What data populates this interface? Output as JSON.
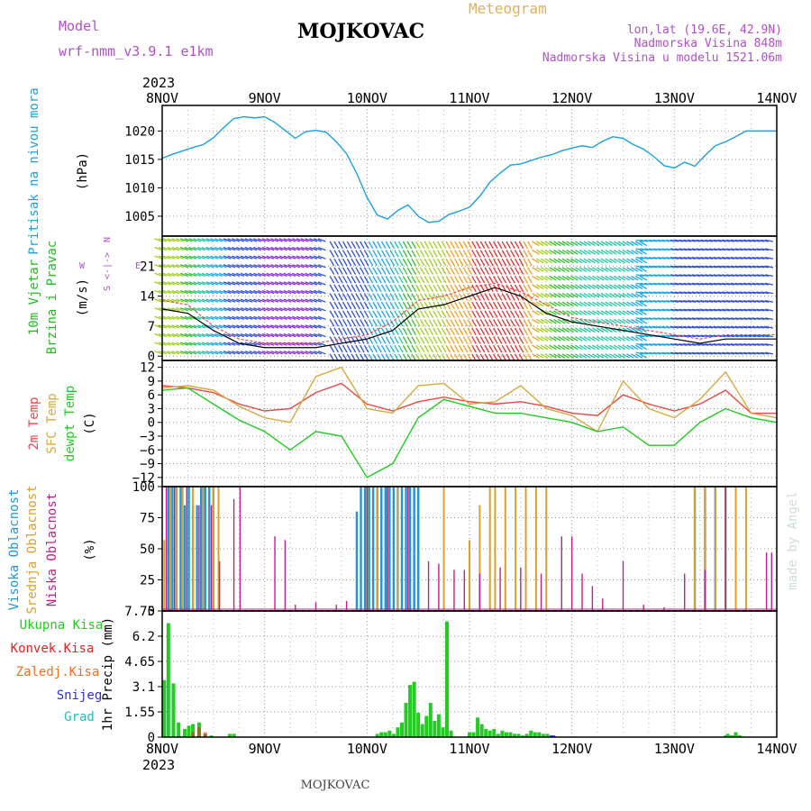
{
  "header": {
    "model_label": "Model",
    "model_name": "wrf-nmm_v3.9.1  e1km",
    "station": "MOJKOVAC",
    "product": "Meteogram",
    "coords": "lon,lat (19.6E, 42.9N)",
    "elevation": "Nadmorska Visina 848m",
    "model_elevation": "Nadmorska Visina u modelu 1521.06m"
  },
  "footer": {
    "station": "MOJKOVAC",
    "credit": "made by Angel"
  },
  "time_axis": {
    "year": "2023",
    "days": [
      "8NOV",
      "9NOV",
      "10NOV",
      "11NOV",
      "12NOV",
      "13NOV",
      "14NOV"
    ]
  },
  "colors": {
    "pressure": "#1ea0e0",
    "wind_label": "#22bb22",
    "temp2m": "#e84848",
    "sfc_temp": "#d8a840",
    "dewpoint": "#22cc22",
    "cloud_high": "#1e96dc",
    "cloud_mid": "#dca030",
    "cloud_low": "#c0208c",
    "precip_total": "#22cc22",
    "precip_conv": "#e82020",
    "precip_freezing": "#f07020",
    "precip_snow": "#3030d8",
    "precip_hail": "#20c0c0",
    "title": "#000000",
    "model": "#b050c8",
    "meteogram": "#e0b060"
  },
  "chart_data": [
    {
      "type": "line",
      "panel": "pressure",
      "ylabel_left": "Pritisak na nivou mora",
      "unit": "(hPa)",
      "yticks": [
        "1005",
        "1010",
        "1015",
        "1020"
      ],
      "ylim": [
        1001.5,
        1024.5
      ],
      "x_unit": "days since 8NOV 00:00",
      "series": [
        {
          "name": "Pritisak na nivou mora",
          "x": [
            0,
            0.1,
            0.2,
            0.3,
            0.4,
            0.5,
            0.6,
            0.7,
            0.8,
            0.9,
            1.0,
            1.1,
            1.2,
            1.3,
            1.4,
            1.5,
            1.6,
            1.7,
            1.8,
            1.9,
            2.0,
            2.1,
            2.2,
            2.3,
            2.4,
            2.5,
            2.6,
            2.7,
            2.8,
            2.9,
            3.0,
            3.1,
            3.2,
            3.3,
            3.4,
            3.5,
            3.6,
            3.7,
            3.8,
            3.9,
            4.0,
            4.1,
            4.2,
            4.3,
            4.4,
            4.5,
            4.6,
            4.7,
            4.8,
            4.9,
            5.0,
            5.1,
            5.2,
            5.3,
            5.4,
            5.5,
            5.6,
            5.7,
            5.8,
            5.9,
            6.0
          ],
          "values": [
            1015.2,
            1015.9,
            1016.5,
            1017.1,
            1017.6,
            1018.8,
            1020.6,
            1022.2,
            1022.5,
            1022.3,
            1022.5,
            1021.5,
            1020.1,
            1018.7,
            1019.9,
            1020.1,
            1019.8,
            1018.1,
            1016.0,
            1012.5,
            1008.3,
            1005.2,
            1004.5,
            1006.0,
            1007.0,
            1005.0,
            1003.9,
            1004.1,
            1005.3,
            1005.9,
            1006.6,
            1008.5,
            1011.0,
            1012.6,
            1014.0,
            1014.2,
            1014.8,
            1015.4,
            1015.8,
            1016.5,
            1017.0,
            1017.4,
            1017.1,
            1018.2,
            1019.0,
            1018.7,
            1017.6,
            1016.8,
            1015.5,
            1013.9,
            1013.5,
            1014.5,
            1013.8,
            1015.7,
            1017.4,
            1018.1,
            1019.0,
            1020.0,
            1020.0,
            1020.0,
            1020.0
          ],
          "values_trimmed_note": ""
        }
      ]
    },
    {
      "type": "line",
      "panel": "wind",
      "ylabel_left": [
        "10m Vjetar",
        "Brzina i Pravac"
      ],
      "unit": "(m/s)",
      "compass": [
        "N",
        "<-|->",
        "S",
        "E",
        "W"
      ],
      "yticks": [
        "0",
        "7",
        "14",
        "21"
      ],
      "ylim": [
        -1,
        28
      ],
      "series": [
        {
          "name": "speed",
          "x": [
            0,
            0.25,
            0.5,
            0.75,
            1.0,
            1.25,
            1.5,
            1.75,
            2.0,
            2.25,
            2.5,
            2.75,
            3.0,
            3.25,
            3.5,
            3.75,
            4.0,
            4.25,
            4.5,
            4.75,
            5.0,
            5.25,
            5.5,
            5.75,
            6.0
          ],
          "values": [
            11,
            10,
            6,
            3,
            2,
            2,
            2,
            3,
            4,
            6,
            11,
            12,
            14,
            16,
            14,
            10,
            8,
            7,
            6,
            5,
            4,
            3,
            4,
            4,
            4
          ]
        },
        {
          "name": "gust",
          "x": [
            0,
            0.25,
            0.5,
            0.75,
            1.0,
            1.25,
            1.5,
            1.75,
            2.0,
            2.25,
            2.5,
            2.75,
            3.0,
            3.25,
            3.5,
            3.75,
            4.0,
            4.25,
            4.5,
            4.75,
            5.0,
            5.25,
            5.5,
            5.75,
            6.0
          ],
          "values": [
            13,
            12,
            7,
            4,
            3,
            3,
            3,
            4,
            5,
            8,
            13,
            14,
            16,
            17,
            15,
            12,
            9,
            8,
            7,
            6,
            5,
            4,
            5,
            5,
            5
          ]
        }
      ]
    },
    {
      "type": "line",
      "panel": "temperature",
      "ylabel_left": [
        "2m Temp",
        "SFC Temp",
        "dewpt Temp"
      ],
      "unit": "(C)",
      "yticks": [
        "−12",
        "−9",
        "−6",
        "−3",
        "0",
        "3",
        "6",
        "9",
        "12"
      ],
      "ylim": [
        -14,
        13.5
      ],
      "x": [
        0,
        0.25,
        0.5,
        0.75,
        1.0,
        1.25,
        1.5,
        1.75,
        2.0,
        2.25,
        2.5,
        2.75,
        3.0,
        3.25,
        3.5,
        3.75,
        4.0,
        4.25,
        4.5,
        4.75,
        5.0,
        5.25,
        5.5,
        5.75,
        6.0
      ],
      "series": [
        {
          "name": "2m Temp",
          "values": [
            8,
            7.5,
            6.5,
            4,
            2.5,
            3,
            6.5,
            8.5,
            4,
            2.5,
            4.5,
            5.5,
            4.5,
            4,
            4.5,
            3.5,
            2,
            1.5,
            6,
            4,
            2.5,
            4,
            7,
            2,
            2
          ]
        },
        {
          "name": "SFC Temp",
          "values": [
            7.5,
            8,
            7,
            3.5,
            1,
            0,
            10,
            12,
            3,
            2,
            8,
            8.5,
            4,
            4.5,
            8,
            3,
            1.5,
            -2,
            9,
            3,
            1,
            5,
            11,
            2,
            1
          ]
        },
        {
          "name": "dewpt Temp",
          "values": [
            7,
            7.5,
            4,
            0.5,
            -2,
            -6,
            -2,
            -3,
            -12,
            -9,
            1,
            5,
            3.5,
            2,
            2,
            1,
            0,
            -2,
            -1,
            -5,
            -5,
            0,
            3,
            1,
            0
          ]
        }
      ]
    },
    {
      "type": "bar",
      "panel": "clouds",
      "ylabel_left": [
        "Visoka Oblacnost",
        "Srednja Oblacnost",
        "Niska Oblacnost"
      ],
      "unit": "(%)",
      "yticks": [
        "0",
        "25",
        "50",
        "75",
        "100"
      ],
      "ylim": [
        0,
        100
      ],
      "series": [
        {
          "name": "Visoka Oblacnost",
          "x": [
            0.06,
            0.1,
            0.14,
            0.18,
            0.22,
            0.26,
            0.3,
            0.34,
            0.38,
            0.42,
            0.46,
            0.5,
            1.9,
            1.94,
            1.98,
            2.02,
            2.06,
            2.1,
            2.14,
            2.18,
            2.22,
            2.26,
            2.3,
            2.34,
            2.38,
            2.42,
            2.46,
            2.5,
            5.2,
            5.3,
            5.4,
            5.5
          ],
          "values": [
            100,
            100,
            100,
            100,
            85,
            100,
            85,
            85,
            100,
            100,
            100,
            100,
            80,
            100,
            100,
            100,
            100,
            100,
            100,
            100,
            100,
            100,
            100,
            100,
            100,
            100,
            100,
            100,
            100,
            100,
            100,
            100
          ]
        },
        {
          "name": "Srednja Oblacnost",
          "x": [
            0.02,
            0.08,
            0.14,
            0.2,
            0.3,
            0.4,
            0.5,
            0.55,
            2.0,
            2.1,
            2.2,
            2.3,
            2.4,
            2.75,
            3.0,
            3.1,
            3.2,
            3.25,
            3.35,
            3.45,
            3.55,
            3.65,
            3.75,
            5.2,
            5.3,
            5.4,
            5.5,
            5.6,
            5.7
          ],
          "values": [
            57,
            100,
            100,
            100,
            100,
            100,
            100,
            100,
            100,
            100,
            100,
            100,
            100,
            100,
            57,
            85,
            100,
            100,
            100,
            100,
            100,
            100,
            100,
            100,
            100,
            100,
            100,
            100,
            100
          ]
        },
        {
          "name": "Niska Oblacnost",
          "x": [
            0.04,
            0.12,
            0.24,
            0.36,
            0.48,
            0.56,
            0.7,
            0.76,
            1.1,
            1.2,
            1.3,
            1.5,
            1.7,
            1.8,
            2.0,
            2.2,
            2.4,
            2.6,
            2.7,
            2.85,
            2.95,
            3.1,
            3.3,
            3.5,
            3.7,
            3.9,
            4.0,
            4.1,
            4.2,
            4.3,
            4.5,
            4.7,
            4.9,
            5.1,
            5.3,
            5.5,
            5.9,
            5.95
          ],
          "values": [
            100,
            100,
            100,
            85,
            85,
            40,
            90,
            100,
            60,
            57,
            5,
            7,
            5,
            8,
            100,
            100,
            100,
            40,
            38,
            33,
            33,
            30,
            35,
            35,
            30,
            60,
            60,
            30,
            20,
            10,
            40,
            5,
            3,
            30,
            33,
            100,
            47,
            47
          ]
        }
      ]
    },
    {
      "type": "bar",
      "panel": "precipitation",
      "ylabel_left": [
        "Ukupna  Kisa",
        "Konvek.Kisa",
        "Zaledj.Kisa",
        "Snijeg",
        "Grad"
      ],
      "unit": "1hr Precip (mm)",
      "yticks": [
        "0",
        "1.55",
        "3.1",
        "4.65",
        "6.2",
        "7.75"
      ],
      "ylim": [
        0,
        7.75
      ],
      "series": [
        {
          "name": "Ukupna  Kisa",
          "x": [
            0.02,
            0.06,
            0.11,
            0.16,
            0.22,
            0.26,
            0.3,
            0.36,
            0.42,
            0.48,
            0.66,
            0.7,
            2.1,
            2.14,
            2.18,
            2.22,
            2.26,
            2.3,
            2.34,
            2.38,
            2.42,
            2.46,
            2.5,
            2.54,
            2.58,
            2.62,
            2.66,
            2.7,
            2.74,
            2.78,
            2.82,
            3.0,
            3.04,
            3.08,
            3.12,
            3.16,
            3.2,
            3.24,
            3.28,
            3.32,
            3.36,
            3.4,
            3.44,
            3.48,
            3.52,
            3.56,
            3.6,
            3.64,
            3.68,
            3.72,
            3.76,
            5.5,
            5.52,
            5.54,
            5.56,
            5.58,
            5.6,
            5.62,
            5.64
          ],
          "values": [
            3.5,
            7.0,
            3.3,
            0.9,
            0.5,
            0.7,
            0.8,
            0.9,
            0.2,
            0.1,
            0.2,
            0.2,
            0.2,
            0.3,
            0.3,
            0.4,
            0.2,
            0.6,
            0.9,
            2.1,
            3.2,
            3.4,
            1.5,
            0.8,
            1.3,
            2.1,
            1.0,
            1.4,
            0.6,
            7.1,
            0.4,
            0.3,
            0.3,
            1.2,
            0.8,
            0.5,
            0.4,
            0.5,
            0.2,
            0.4,
            0.3,
            0.3,
            0.2,
            0.2,
            0.1,
            0.2,
            0.4,
            0.3,
            0.3,
            0.2,
            0.2,
            0.1,
            0.2,
            0.1,
            0.1,
            0.1,
            0.3,
            0.1,
            0.1
          ]
        },
        {
          "name": "Konvek.Kisa",
          "x": [
            0.3,
            0.36,
            0.42
          ],
          "values": [
            0.3,
            0.6,
            0.3
          ]
        },
        {
          "name": "Zaledj.Kisa",
          "x": [],
          "values": []
        },
        {
          "name": "Snijeg",
          "x": [
            3.8,
            3.82
          ],
          "values": [
            0.1,
            0.1
          ]
        },
        {
          "name": "Grad",
          "x": [],
          "values": []
        }
      ]
    }
  ]
}
